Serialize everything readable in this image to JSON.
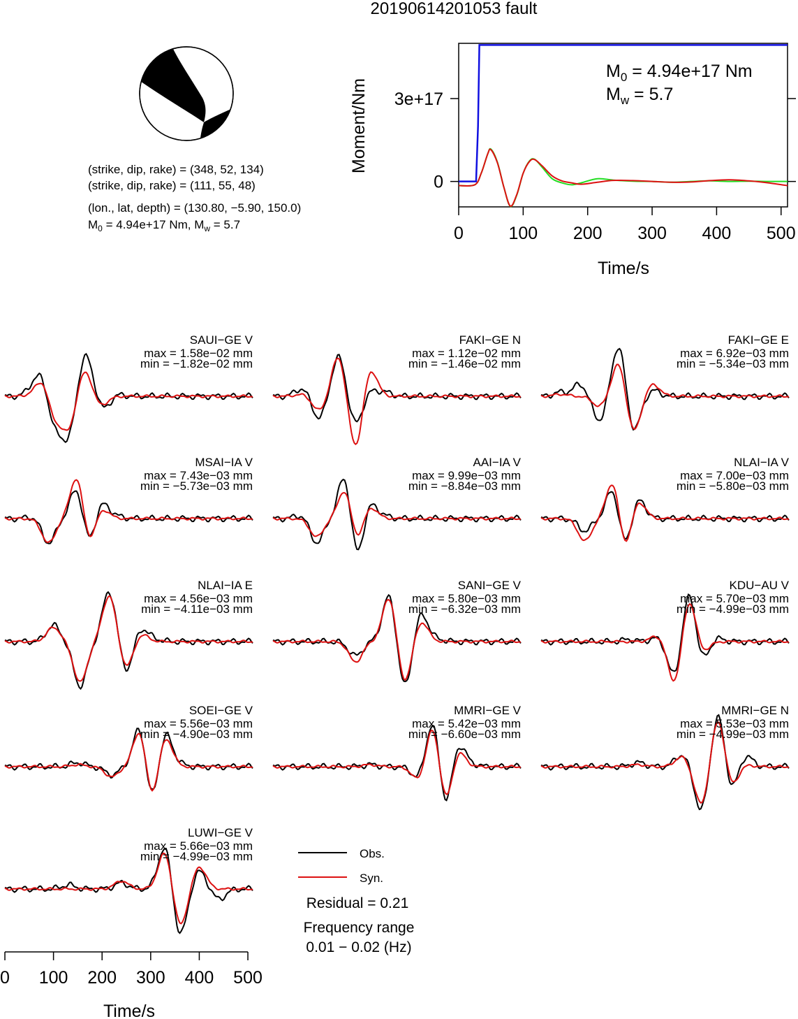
{
  "title": "20190614201053 fault",
  "beachball": {
    "planes": [
      "(strike, dip, rake) = (348, 52, 134)",
      "(strike, dip, rake) = (111, 55, 48)"
    ],
    "location": "(lon., lat, depth) = (130.80, −5.90, 150.0)",
    "m0_prefix": "M",
    "m0_sub": "0",
    "m0_value": " = 4.94e+17 Nm, M",
    "mw_sub": "w",
    "mw_value": " = 5.7"
  },
  "moment_panel": {
    "ylabel": "Moment/Nm",
    "xlabel": "Time/s",
    "m0_label_prefix": "M",
    "m0_label_sub": "0",
    "m0_label_value": " = 4.94e+17 Nm",
    "mw_label_prefix": "M",
    "mw_label_sub": "w",
    "mw_label_value": " = 5.7",
    "yticks": [
      {
        "value": 0,
        "label": "0"
      },
      {
        "value": 3e+17,
        "label": "3e+17"
      }
    ],
    "xticks": [
      0,
      100,
      200,
      300,
      400,
      500
    ]
  },
  "chart_data": {
    "type": "line",
    "moment_function": {
      "xlim": [
        0,
        510
      ],
      "ylim": [
        -9.2e+16,
        5e+17
      ],
      "cumulative_moment": {
        "x": [
          0,
          27,
          30,
          32,
          510
        ],
        "y": [
          0,
          0,
          2e+17,
          4.94e+17,
          4.94e+17
        ]
      },
      "moment_rate": {
        "x": [
          0,
          25,
          35,
          45,
          50,
          60,
          70,
          80,
          90,
          100,
          110,
          118,
          130,
          145,
          160,
          175,
          190,
          215,
          240,
          270,
          300,
          330,
          360,
          390,
          420,
          450,
          480,
          510
        ],
        "y": [
          -1.5e+16,
          -1.2e+16,
          3e+16,
          1e+17,
          1.17e+17,
          7e+16,
          -2e+16,
          -9e+16,
          -5e+16,
          3e+16,
          7.5e+16,
          8e+16,
          5e+16,
          1e+16,
          -5000000000000000.0,
          -1.2e+16,
          -5000000000000000.0,
          1e+16,
          5000000000000000.0,
          1000000000000000.0,
          0,
          -3000000000000000.0,
          0,
          2000000000000000.0,
          0,
          1000000000000000.0,
          0,
          0
        ]
      },
      "moment_rate_alt": {
        "x": [
          0,
          25,
          35,
          45,
          50,
          60,
          70,
          80,
          90,
          100,
          110,
          118,
          130,
          145,
          160,
          175,
          190,
          215,
          240,
          270,
          300,
          330,
          360,
          390,
          420,
          450,
          480,
          510
        ],
        "y": [
          -1.5e+16,
          -1.2e+16,
          3e+16,
          1e+17,
          1.15e+17,
          6.8e+16,
          -2e+16,
          -8.9e+16,
          -4.8e+16,
          3e+16,
          7.3e+16,
          7.9e+16,
          5.5e+16,
          2e+16,
          2000000000000000.0,
          -5000000000000000.0,
          -1e+16,
          -3000000000000000.0,
          4000000000000000.0,
          3000000000000000.0,
          0,
          -3000000000000000.0,
          -2000000000000000.0,
          3000000000000000.0,
          6000000000000000.0,
          2000000000000000.0,
          -5000000000000000.0,
          -1.5e+16
        ]
      }
    },
    "waveform_panels": {
      "xlim": [
        0,
        510
      ],
      "xticks": [
        0,
        100,
        200,
        300,
        400,
        500
      ],
      "xlabel": "Time/s"
    },
    "legend": {
      "obs": "Obs.",
      "syn": "Syn.",
      "placement": "bottom-center"
    },
    "residual": "Residual = 0.21",
    "freq_label": "Frequency range",
    "freq_value": "0.01 − 0.02 (Hz)",
    "stations": [
      {
        "name": "SAUI−GE V",
        "max": "max = 1.58e−02 mm",
        "min": "min = −1.82e−02 mm",
        "obs": [
          [
            60,
            0.25
          ],
          [
            80,
            0.5
          ],
          [
            100,
            -0.8
          ],
          [
            130,
            -1.0
          ],
          [
            165,
            1.0
          ],
          [
            190,
            0.2
          ],
          [
            200,
            -0.45
          ],
          [
            230,
            0.05
          ]
        ],
        "syn": [
          [
            60,
            0.05
          ],
          [
            80,
            0.45
          ],
          [
            100,
            -0.6
          ],
          [
            130,
            -0.8
          ],
          [
            165,
            0.65
          ],
          [
            190,
            -0.1
          ],
          [
            200,
            -0.15
          ],
          [
            230,
            0
          ]
        ]
      },
      {
        "name": "FAKI−GE N",
        "max": "max = 1.12e−02 mm",
        "min": "min = −1.46e−02 mm",
        "obs": [
          [
            60,
            0.2
          ],
          [
            95,
            -0.55
          ],
          [
            135,
            1.0
          ],
          [
            170,
            -0.7
          ],
          [
            200,
            0.15
          ],
          [
            230,
            0.1
          ]
        ],
        "syn": [
          [
            60,
            0.05
          ],
          [
            95,
            -0.35
          ],
          [
            135,
            1.0
          ],
          [
            170,
            -1.3
          ],
          [
            200,
            0.7
          ],
          [
            230,
            0
          ]
        ]
      },
      {
        "name": "FAKI−GE E",
        "max": "max = 6.92e−03 mm",
        "min": "min = −5.34e−03 mm",
        "obs": [
          [
            40,
            0.1
          ],
          [
            80,
            0.3
          ],
          [
            120,
            -0.6
          ],
          [
            160,
            1.3
          ],
          [
            190,
            -0.9
          ],
          [
            230,
            0.15
          ]
        ],
        "syn": [
          [
            40,
            0.05
          ],
          [
            80,
            0.0
          ],
          [
            120,
            -0.25
          ],
          [
            160,
            0.85
          ],
          [
            190,
            -0.9
          ],
          [
            230,
            0.3
          ]
        ]
      },
      {
        "name": "MSAI−IA V",
        "max": "max = 7.43e−03 mm",
        "min": "min = −5.73e−03 mm",
        "obs": [
          [
            60,
            0.05
          ],
          [
            90,
            -0.6
          ],
          [
            150,
            0.9
          ],
          [
            170,
            -0.75
          ],
          [
            200,
            0.4
          ],
          [
            230,
            0.05
          ]
        ],
        "syn": [
          [
            60,
            0.0
          ],
          [
            90,
            -0.6
          ],
          [
            150,
            1.2
          ],
          [
            170,
            -0.75
          ],
          [
            200,
            0.25
          ],
          [
            230,
            0.0
          ]
        ]
      },
      {
        "name": "AAI−IA V",
        "max": "max = 9.99e−03 mm",
        "min": "min = −8.84e−03 mm",
        "obs": [
          [
            60,
            0.1
          ],
          [
            90,
            -0.6
          ],
          [
            150,
            1.3
          ],
          [
            170,
            -1.2
          ],
          [
            200,
            0.4
          ],
          [
            230,
            0.05
          ]
        ],
        "syn": [
          [
            60,
            0.0
          ],
          [
            90,
            -0.45
          ],
          [
            150,
            0.85
          ],
          [
            170,
            -0.65
          ],
          [
            200,
            0.3
          ],
          [
            230,
            0.0
          ]
        ]
      },
      {
        "name": "NLAI−IA V",
        "max": "max = 7.00e−03 mm",
        "min": "min = −5.80e−03 mm",
        "obs": [
          [
            60,
            0.0
          ],
          [
            90,
            -0.3
          ],
          [
            150,
            0.9
          ],
          [
            170,
            -0.85
          ],
          [
            200,
            0.5
          ],
          [
            230,
            0.0
          ]
        ],
        "syn": [
          [
            60,
            0.0
          ],
          [
            90,
            -0.55
          ],
          [
            150,
            1.1
          ],
          [
            170,
            -0.9
          ],
          [
            200,
            0.45
          ],
          [
            230,
            0.0
          ]
        ]
      },
      {
        "name": "NLAI−IA E",
        "max": "max = 4.56e−03 mm",
        "min": "min = −4.11e−03 mm",
        "obs": [
          [
            100,
            0.4
          ],
          [
            155,
            -1.1
          ],
          [
            215,
            1.25
          ],
          [
            250,
            -0.75
          ],
          [
            280,
            0.35
          ],
          [
            310,
            0.05
          ]
        ],
        "syn": [
          [
            100,
            0.35
          ],
          [
            155,
            -1.0
          ],
          [
            215,
            1.15
          ],
          [
            250,
            -0.65
          ],
          [
            280,
            0.2
          ],
          [
            310,
            0.0
          ]
        ]
      },
      {
        "name": "SANI−GE V",
        "max": "max = 5.80e−03 mm",
        "min": "min = −6.32e−03 mm",
        "obs": [
          [
            130,
            0.0
          ],
          [
            170,
            -0.35
          ],
          [
            240,
            1.2
          ],
          [
            270,
            -1.2
          ],
          [
            305,
            0.7
          ],
          [
            340,
            0.05
          ]
        ],
        "syn": [
          [
            130,
            0.0
          ],
          [
            170,
            -0.5
          ],
          [
            240,
            1.15
          ],
          [
            270,
            -1.05
          ],
          [
            305,
            0.5
          ],
          [
            340,
            0.0
          ]
        ]
      },
      {
        "name": "KDU−AU V",
        "max": "max = 5.70e−03 mm",
        "min": "min = −4.99e−03 mm",
        "obs": [
          [
            180,
            0.05
          ],
          [
            240,
            0.1
          ],
          [
            275,
            -0.9
          ],
          [
            305,
            1.3
          ],
          [
            330,
            -0.55
          ],
          [
            360,
            0.1
          ]
        ],
        "syn": [
          [
            180,
            0.0
          ],
          [
            240,
            0.15
          ],
          [
            275,
            -1.05
          ],
          [
            305,
            1.1
          ],
          [
            330,
            -0.3
          ],
          [
            360,
            0.0
          ]
        ]
      },
      {
        "name": "SOEI−GE V",
        "max": "max = 5.56e−03 mm",
        "min": "min = −4.90e−03 mm",
        "obs": [
          [
            150,
            0.1
          ],
          [
            220,
            -0.2
          ],
          [
            280,
            1.2
          ],
          [
            300,
            -1.1
          ],
          [
            330,
            0.85
          ],
          [
            360,
            0.05
          ]
        ],
        "syn": [
          [
            150,
            0.05
          ],
          [
            220,
            -0.25
          ],
          [
            280,
            1.1
          ],
          [
            300,
            -1.0
          ],
          [
            330,
            0.75
          ],
          [
            360,
            0.0
          ]
        ]
      },
      {
        "name": "MMRI−GE V",
        "max": "max = 5.42e−03 mm",
        "min": "min = −6.60e−03 mm",
        "obs": [
          [
            200,
            0.05
          ],
          [
            300,
            -0.3
          ],
          [
            330,
            1.25
          ],
          [
            355,
            -1.15
          ],
          [
            380,
            0.65
          ],
          [
            410,
            0.05
          ]
        ],
        "syn": [
          [
            200,
            0.05
          ],
          [
            300,
            -0.35
          ],
          [
            330,
            1.1
          ],
          [
            355,
            -1.0
          ],
          [
            380,
            0.45
          ],
          [
            410,
            0.0
          ]
        ]
      },
      {
        "name": "MMRI−GE N",
        "max": "max = 5.53e−03 mm",
        "min": "min = −4.99e−03 mm",
        "obs": [
          [
            200,
            0.1
          ],
          [
            290,
            0.3
          ],
          [
            330,
            -1.1
          ],
          [
            365,
            1.4
          ],
          [
            390,
            -0.7
          ],
          [
            420,
            0.3
          ]
        ],
        "syn": [
          [
            200,
            0.05
          ],
          [
            290,
            0.25
          ],
          [
            330,
            -0.95
          ],
          [
            365,
            1.25
          ],
          [
            390,
            -0.55
          ],
          [
            420,
            0.05
          ]
        ]
      },
      {
        "name": "LUWI−GE V",
        "max": "max = 5.66e−03 mm",
        "min": "min = −4.99e−03 mm",
        "obs": [
          [
            130,
            0.1
          ],
          [
            240,
            0.15
          ],
          [
            330,
            1.1
          ],
          [
            360,
            -1.2
          ],
          [
            400,
            0.45
          ],
          [
            440,
            -0.25
          ]
        ],
        "syn": [
          [
            130,
            0.0
          ],
          [
            240,
            0.2
          ],
          [
            330,
            0.95
          ],
          [
            360,
            -0.95
          ],
          [
            400,
            0.55
          ],
          [
            440,
            0.0
          ]
        ]
      }
    ]
  }
}
